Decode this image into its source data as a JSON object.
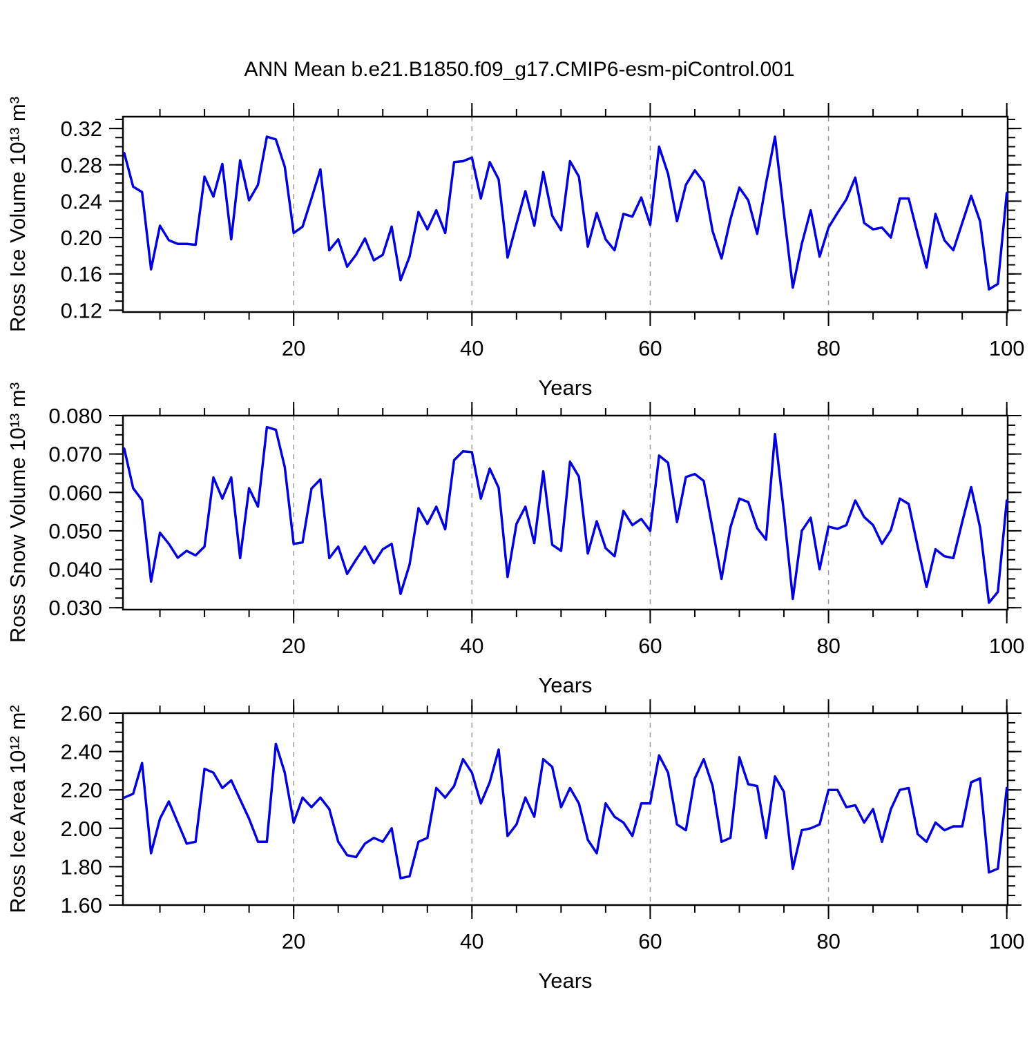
{
  "title": "ANN Mean b.e21.B1850.f09_g17.CMIP6-esm-piControl.001",
  "line_color": "#0000dd",
  "grid_color": "#999999",
  "chart_data": [
    {
      "type": "line",
      "title": "",
      "ylabel": "Ross Ice Volume 10¹³ m³",
      "xlabel": "Years",
      "ylim": [
        0.118,
        0.333
      ],
      "xlim": [
        0.85,
        100.1
      ],
      "x_start": 1,
      "x_step": 1,
      "yticks": [
        0.12,
        0.16,
        0.2,
        0.24,
        0.28,
        0.32
      ],
      "ytick_labels": [
        "0.12",
        "0.16",
        "0.20",
        "0.24",
        "0.28",
        "0.32"
      ],
      "ytick_minor_step": 0.01,
      "xticks": [
        20,
        40,
        60,
        80,
        100
      ],
      "xtick_labels": [
        "20",
        "40",
        "60",
        "80",
        "100"
      ],
      "xtick_minor_step": 5,
      "grid_x": [
        20,
        40,
        60,
        80
      ],
      "grid_style": "dashed",
      "legend": "none",
      "values": [
        0.293,
        0.256,
        0.25,
        0.165,
        0.213,
        0.197,
        0.193,
        0.193,
        0.192,
        0.267,
        0.245,
        0.281,
        0.198,
        0.285,
        0.241,
        0.258,
        0.311,
        0.308,
        0.278,
        0.205,
        0.212,
        0.243,
        0.275,
        0.186,
        0.198,
        0.168,
        0.181,
        0.199,
        0.175,
        0.181,
        0.212,
        0.153,
        0.179,
        0.228,
        0.209,
        0.23,
        0.205,
        0.283,
        0.284,
        0.288,
        0.243,
        0.283,
        0.264,
        0.178,
        0.215,
        0.251,
        0.213,
        0.272,
        0.224,
        0.208,
        0.284,
        0.267,
        0.19,
        0.227,
        0.198,
        0.186,
        0.226,
        0.223,
        0.244,
        0.214,
        0.3,
        0.27,
        0.218,
        0.258,
        0.274,
        0.261,
        0.207,
        0.177,
        0.22,
        0.255,
        0.241,
        0.204,
        0.26,
        0.311,
        0.227,
        0.145,
        0.193,
        0.23,
        0.179,
        0.211,
        0.227,
        0.242,
        0.266,
        0.216,
        0.209,
        0.211,
        0.2,
        0.243,
        0.243,
        0.204,
        0.167,
        0.226,
        0.197,
        0.186,
        0.216,
        0.246,
        0.218,
        0.143,
        0.149,
        0.249
      ]
    },
    {
      "type": "line",
      "title": "",
      "ylabel": "Ross Snow Volume 10¹³ m³",
      "xlabel": "Years",
      "ylim": [
        0.0295,
        0.08
      ],
      "xlim": [
        0.85,
        100.1
      ],
      "x_start": 1,
      "x_step": 1,
      "yticks": [
        0.03,
        0.04,
        0.05,
        0.06,
        0.07,
        0.08
      ],
      "ytick_labels": [
        "0.030",
        "0.040",
        "0.050",
        "0.060",
        "0.070",
        "0.080"
      ],
      "ytick_minor_step": 0.0025,
      "xticks": [
        20,
        40,
        60,
        80,
        100
      ],
      "xtick_labels": [
        "20",
        "40",
        "60",
        "80",
        "100"
      ],
      "xtick_minor_step": 5,
      "grid_x": [
        20,
        40,
        60,
        80
      ],
      "grid_style": "dashed",
      "legend": "none",
      "values": [
        0.0714,
        0.0611,
        0.058,
        0.0368,
        0.0495,
        0.0466,
        0.043,
        0.0448,
        0.0436,
        0.0459,
        0.0639,
        0.0584,
        0.0639,
        0.0429,
        0.0611,
        0.0563,
        0.077,
        0.0763,
        0.0666,
        0.0466,
        0.047,
        0.061,
        0.0634,
        0.0429,
        0.0459,
        0.0388,
        0.0425,
        0.0459,
        0.0416,
        0.0452,
        0.0466,
        0.0336,
        0.0412,
        0.0559,
        0.0518,
        0.0563,
        0.0504,
        0.0684,
        0.0707,
        0.0705,
        0.0584,
        0.0662,
        0.0612,
        0.038,
        0.0518,
        0.0563,
        0.0468,
        0.0655,
        0.0464,
        0.0448,
        0.068,
        0.0641,
        0.0441,
        0.0525,
        0.0455,
        0.0434,
        0.0552,
        0.0515,
        0.0531,
        0.05,
        0.0696,
        0.0677,
        0.0523,
        0.064,
        0.0648,
        0.063,
        0.0505,
        0.0375,
        0.0509,
        0.0584,
        0.0575,
        0.0507,
        0.0477,
        0.0752,
        0.0548,
        0.0323,
        0.05,
        0.0534,
        0.04,
        0.0511,
        0.0505,
        0.0515,
        0.0579,
        0.0536,
        0.0515,
        0.0466,
        0.0502,
        0.0584,
        0.057,
        0.046,
        0.0354,
        0.0452,
        0.0434,
        0.0429,
        0.0523,
        0.0614,
        0.0509,
        0.0313,
        0.0341,
        0.0579
      ]
    },
    {
      "type": "line",
      "title": "",
      "ylabel": "Ross Ice Area 10¹² m²",
      "xlabel": "Years",
      "ylim": [
        1.6,
        2.6
      ],
      "xlim": [
        0.85,
        100.1
      ],
      "x_start": 1,
      "x_step": 1,
      "yticks": [
        1.6,
        1.8,
        2.0,
        2.2,
        2.4,
        2.6
      ],
      "ytick_labels": [
        "1.60",
        "1.80",
        "2.00",
        "2.20",
        "2.40",
        "2.60"
      ],
      "ytick_minor_step": 0.05,
      "xticks": [
        20,
        40,
        60,
        80,
        100
      ],
      "xtick_labels": [
        "20",
        "40",
        "60",
        "80",
        "100"
      ],
      "xtick_minor_step": 5,
      "grid_x": [
        20,
        40,
        60,
        80
      ],
      "grid_style": "dashed",
      "legend": "none",
      "values": [
        2.16,
        2.18,
        2.34,
        1.87,
        2.05,
        2.14,
        2.03,
        1.92,
        1.93,
        2.31,
        2.29,
        2.21,
        2.25,
        2.15,
        2.05,
        1.93,
        1.93,
        2.44,
        2.29,
        2.03,
        2.16,
        2.11,
        2.16,
        2.1,
        1.93,
        1.86,
        1.85,
        1.92,
        1.95,
        1.93,
        2.0,
        1.74,
        1.75,
        1.93,
        1.95,
        2.21,
        2.16,
        2.22,
        2.36,
        2.29,
        2.13,
        2.24,
        2.41,
        1.96,
        2.02,
        2.16,
        2.06,
        2.36,
        2.32,
        2.11,
        2.21,
        2.13,
        1.94,
        1.87,
        2.13,
        2.06,
        2.03,
        1.96,
        2.13,
        2.13,
        2.38,
        2.29,
        2.02,
        1.99,
        2.26,
        2.36,
        2.22,
        1.93,
        1.95,
        2.37,
        2.23,
        2.22,
        1.95,
        2.27,
        2.19,
        1.79,
        1.99,
        2.0,
        2.02,
        2.2,
        2.2,
        2.11,
        2.12,
        2.03,
        2.1,
        1.93,
        2.1,
        2.2,
        2.21,
        1.97,
        1.93,
        2.03,
        1.99,
        2.01,
        2.01,
        2.24,
        2.26,
        1.77,
        1.79,
        2.21
      ]
    }
  ]
}
